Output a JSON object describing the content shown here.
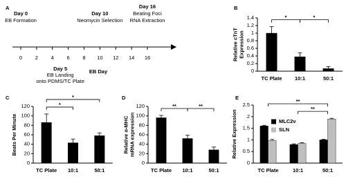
{
  "chart_data": [
    {
      "type": "timeline",
      "panel_label": "A",
      "xlim": [
        0,
        16
      ],
      "xticks": [
        0,
        2,
        4,
        6,
        8,
        10,
        12,
        14,
        16
      ],
      "x_label": "EB Day",
      "events": [
        {
          "x": 0,
          "lines": [
            "Day 0",
            "EB Formation"
          ],
          "side": "above"
        },
        {
          "x": 5,
          "lines": [
            "Day 5",
            "EB Landing",
            "onto PDMS/TC Plate"
          ],
          "side": "below"
        },
        {
          "x": 10,
          "lines": [
            "Day 10",
            "Neomycin Selection"
          ],
          "side": "above"
        },
        {
          "x": 16,
          "lines": [
            "Day 16",
            "Beating Foci",
            "RNA Extraction"
          ],
          "side": "above"
        }
      ]
    },
    {
      "type": "bar",
      "panel_label": "B",
      "y_label": [
        "Relative cTnT",
        "Expression"
      ],
      "categories": [
        "TC Plate",
        "10:1",
        "50:1"
      ],
      "series": [
        {
          "color": "#000000",
          "values": [
            1.0,
            0.38,
            0.07
          ],
          "errors": [
            0.17,
            0.1,
            0.05
          ]
        }
      ],
      "ylim": [
        0,
        1.4
      ],
      "yticks": [
        0,
        0.2,
        0.4,
        0.6,
        0.8,
        1,
        1.2,
        1.4
      ],
      "brackets": [
        {
          "label": "*",
          "between": [
            "TC Plate",
            "10:1"
          ]
        },
        {
          "label": "*",
          "between": [
            "10:1",
            "50:1"
          ]
        }
      ]
    },
    {
      "type": "bar",
      "panel_label": "C",
      "y_label": [
        "Beats Per Minute"
      ],
      "categories": [
        "TC Plate",
        "10:1",
        "50:1"
      ],
      "series": [
        {
          "color": "#000000",
          "values": [
            86,
            43,
            58
          ],
          "errors": [
            18,
            8,
            6
          ]
        }
      ],
      "ylim": [
        0,
        120
      ],
      "yticks": [
        0,
        20,
        40,
        60,
        80,
        100,
        120
      ],
      "brackets": [
        {
          "label": "*",
          "between": [
            "TC Plate",
            "10:1"
          ]
        },
        {
          "label": "*",
          "between": [
            "TC Plate",
            "50:1"
          ]
        }
      ]
    },
    {
      "type": "bar",
      "panel_label": "D",
      "y_label": [
        "Relative α-MHC",
        "mRNA expression"
      ],
      "categories": [
        "TC Plate",
        "10:1",
        "50:1"
      ],
      "series": [
        {
          "color": "#000000",
          "values": [
            96,
            52,
            28
          ],
          "errors": [
            5,
            7,
            6
          ]
        }
      ],
      "ylim": [
        0,
        120
      ],
      "yticks": [
        0,
        20,
        40,
        60,
        80,
        100,
        120
      ],
      "brackets": [
        {
          "label": "**",
          "between": [
            "TC Plate",
            "10:1"
          ]
        },
        {
          "label": "**",
          "between": [
            "10:1",
            "50:1"
          ]
        }
      ]
    },
    {
      "type": "bar",
      "panel_label": "E",
      "y_label": [
        "Relative Expression"
      ],
      "categories": [
        "TC Plate",
        "10:1",
        "50:1"
      ],
      "series": [
        {
          "name": "MLC2v",
          "color": "#000000",
          "values": [
            1.6,
            0.8,
            1.0
          ],
          "errors": [
            0.03,
            0.03,
            0.03
          ]
        },
        {
          "name": "SLN",
          "color": "#bfbfbf",
          "values": [
            0.97,
            0.85,
            1.9
          ],
          "errors": [
            0.05,
            0.03,
            0.03
          ]
        }
      ],
      "ylim": [
        0,
        2.5
      ],
      "yticks": [
        0,
        0.5,
        1,
        1.5,
        2,
        2.5
      ],
      "legend": "upper left",
      "brackets": [
        {
          "label": "**",
          "between": [
            "TC Plate",
            "50:1"
          ]
        },
        {
          "label": "**",
          "between": [
            "10:1",
            "50:1"
          ]
        }
      ]
    }
  ]
}
